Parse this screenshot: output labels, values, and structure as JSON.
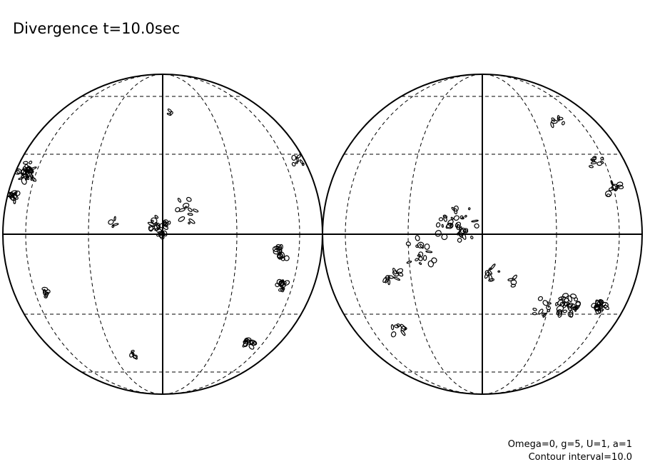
{
  "title": "Divergence t=10.0sec",
  "footer": {
    "parameters": "Omega=0, g=5, U=1, a=1",
    "contour_interval": "Contour interval=10.0"
  }
}
